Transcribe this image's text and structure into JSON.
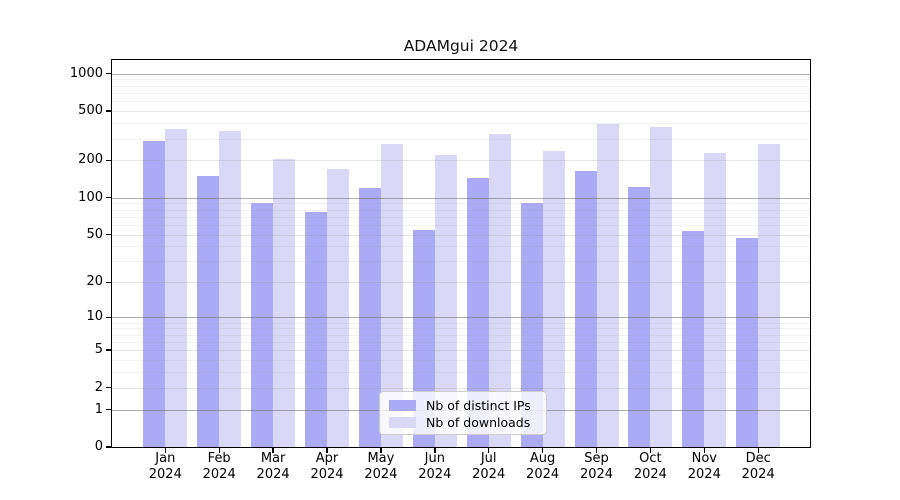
{
  "chart_data": {
    "type": "bar",
    "title": "ADAMgui 2024",
    "categories": [
      "Jan",
      "Feb",
      "Mar",
      "Apr",
      "May",
      "Jun",
      "Jul",
      "Aug",
      "Sep",
      "Oct",
      "Nov",
      "Dec"
    ],
    "category_year": "2024",
    "series": [
      {
        "name": "Nb of distinct IPs",
        "color": "#aaaaf6",
        "values": [
          287,
          149,
          90,
          76,
          119,
          54,
          143,
          90,
          165,
          121,
          53,
          47
        ]
      },
      {
        "name": "Nb of downloads",
        "color": "#d9d9f7",
        "values": [
          356,
          345,
          204,
          169,
          271,
          221,
          328,
          240,
          395,
          371,
          230,
          270
        ]
      }
    ],
    "yscale": "log1p",
    "ylim": [
      0,
      1285
    ],
    "yticks": [
      1000,
      500,
      200,
      100,
      50,
      20,
      10,
      5,
      2,
      1,
      0
    ],
    "decade_ticks": [
      1000,
      100,
      10,
      1
    ],
    "minor_gridlines": [
      900,
      800,
      700,
      600,
      400,
      300,
      90,
      80,
      70,
      60,
      40,
      30,
      9,
      8,
      7,
      6,
      4,
      3
    ],
    "grid": true,
    "legend_position": "lower center",
    "xlabel": "",
    "ylabel": "",
    "colors": {
      "bar_distinct_ips": "#aaaaf6",
      "bar_downloads": "#d9d9f7",
      "axis": "#000000",
      "grid_decade": "#696969",
      "grid_light": "#8c8c8c",
      "background": "#ffffff"
    }
  }
}
